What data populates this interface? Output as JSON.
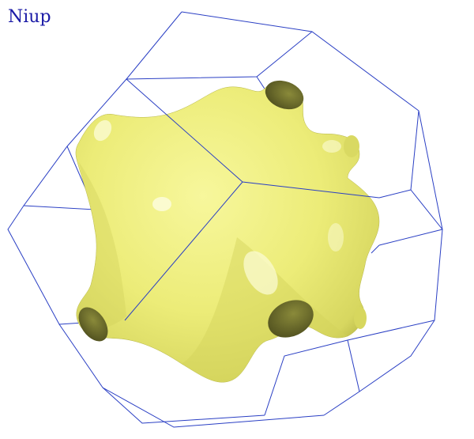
{
  "label": "Niup",
  "colors": {
    "background": "#ffffff",
    "label": "#1a1aa6",
    "edges": "#2a3fc4",
    "surface": "#ecec78",
    "surface_shadow": "#9a9a38",
    "surface_highlight": "#fbfbd2",
    "hole": "#6a6a2a"
  }
}
